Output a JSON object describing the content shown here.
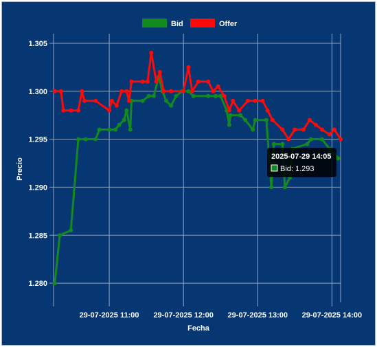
{
  "colors": {
    "background": "#063773",
    "grid": "#8ea6c6",
    "bid": "#138a1d",
    "offer": "#ff0a0a",
    "tooltip_bg": "#000000",
    "text": "#ffffff"
  },
  "chart_data": {
    "type": "line",
    "title": "",
    "xlabel": "Fecha",
    "ylabel": "Precio",
    "legend_position": "top",
    "grid": true,
    "x_range": [
      "2025-07-29 10:15",
      "2025-07-29 14:07"
    ],
    "ylim": [
      1.278,
      1.306
    ],
    "y_ticks": [
      "1.280",
      "1.285",
      "1.290",
      "1.295",
      "1.300",
      "1.305"
    ],
    "x_ticks": [
      {
        "t": "2025-07-29 11:00",
        "label": "29-07-2025 11:00"
      },
      {
        "t": "2025-07-29 12:00",
        "label": "29-07-2025 12:00"
      },
      {
        "t": "2025-07-29 13:00",
        "label": "29-07-2025 13:00"
      },
      {
        "t": "2025-07-29 14:00",
        "label": "29-07-2025 14:00"
      }
    ],
    "series": [
      {
        "name": "Bid",
        "color": "#138a1d",
        "points": [
          [
            "2025-07-29 10:16",
            1.28
          ],
          [
            "2025-07-29 10:20",
            1.285
          ],
          [
            "2025-07-29 10:29",
            1.2855
          ],
          [
            "2025-07-29 10:35",
            1.295
          ],
          [
            "2025-07-29 10:41",
            1.295
          ],
          [
            "2025-07-29 10:49",
            1.295
          ],
          [
            "2025-07-29 10:52",
            1.296
          ],
          [
            "2025-07-29 11:00",
            1.296
          ],
          [
            "2025-07-29 11:05",
            1.296
          ],
          [
            "2025-07-29 11:08",
            1.2965
          ],
          [
            "2025-07-29 11:12",
            1.297
          ],
          [
            "2025-07-29 11:14",
            1.298
          ],
          [
            "2025-07-29 11:17",
            1.296
          ],
          [
            "2025-07-29 11:18",
            1.299
          ],
          [
            "2025-07-29 11:27",
            1.299
          ],
          [
            "2025-07-29 11:32",
            1.2995
          ],
          [
            "2025-07-29 11:36",
            1.2995
          ],
          [
            "2025-07-29 11:40",
            1.3015
          ],
          [
            "2025-07-29 11:43",
            1.3
          ],
          [
            "2025-07-29 11:46",
            1.299
          ],
          [
            "2025-07-29 11:50",
            1.2985
          ],
          [
            "2025-07-29 11:54",
            1.2995
          ],
          [
            "2025-07-29 11:59",
            1.3
          ],
          [
            "2025-07-29 12:04",
            1.3
          ],
          [
            "2025-07-29 12:08",
            1.2995
          ],
          [
            "2025-07-29 12:20",
            1.2995
          ],
          [
            "2025-07-29 12:26",
            1.2995
          ],
          [
            "2025-07-29 12:30",
            1.2995
          ],
          [
            "2025-07-29 12:35",
            1.298
          ],
          [
            "2025-07-29 12:37",
            1.2965
          ],
          [
            "2025-07-29 12:38",
            1.2975
          ],
          [
            "2025-07-29 12:46",
            1.2975
          ],
          [
            "2025-07-29 12:50",
            1.297
          ],
          [
            "2025-07-29 12:56",
            1.296
          ],
          [
            "2025-07-29 12:58",
            1.297
          ],
          [
            "2025-07-29 13:07",
            1.297
          ],
          [
            "2025-07-29 13:11",
            1.29
          ],
          [
            "2025-07-29 13:13",
            1.2945
          ],
          [
            "2025-07-29 13:20",
            1.2945
          ],
          [
            "2025-07-29 13:22",
            1.29
          ],
          [
            "2025-07-29 13:26",
            1.291
          ],
          [
            "2025-07-29 13:28",
            1.294
          ],
          [
            "2025-07-29 13:40",
            1.2945
          ],
          [
            "2025-07-29 13:43",
            1.295
          ],
          [
            "2025-07-29 13:52",
            1.295
          ],
          [
            "2025-07-29 13:58",
            1.294
          ],
          [
            "2025-07-29 14:02",
            1.2935
          ],
          [
            "2025-07-29 14:05",
            1.293
          ]
        ]
      },
      {
        "name": "Offer",
        "color": "#ff0a0a",
        "points": [
          [
            "2025-07-29 10:16",
            1.3
          ],
          [
            "2025-07-29 10:21",
            1.3
          ],
          [
            "2025-07-29 10:23",
            1.298
          ],
          [
            "2025-07-29 10:29",
            1.298
          ],
          [
            "2025-07-29 10:35",
            1.298
          ],
          [
            "2025-07-29 10:38",
            1.3
          ],
          [
            "2025-07-29 10:40",
            1.299
          ],
          [
            "2025-07-29 10:49",
            1.299
          ],
          [
            "2025-07-29 11:00",
            1.298
          ],
          [
            "2025-07-29 11:02",
            1.299
          ],
          [
            "2025-07-29 11:06",
            1.2985
          ],
          [
            "2025-07-29 11:10",
            1.3
          ],
          [
            "2025-07-29 11:14",
            1.3
          ],
          [
            "2025-07-29 11:16",
            1.299
          ],
          [
            "2025-07-29 11:18",
            1.301
          ],
          [
            "2025-07-29 11:27",
            1.301
          ],
          [
            "2025-07-29 11:31",
            1.301
          ],
          [
            "2025-07-29 11:34",
            1.304
          ],
          [
            "2025-07-29 11:38",
            1.301
          ],
          [
            "2025-07-29 11:41",
            1.302
          ],
          [
            "2025-07-29 11:44",
            1.3
          ],
          [
            "2025-07-29 11:50",
            1.3
          ],
          [
            "2025-07-29 12:00",
            1.3
          ],
          [
            "2025-07-29 12:04",
            1.3025
          ],
          [
            "2025-07-29 12:07",
            1.3
          ],
          [
            "2025-07-29 12:12",
            1.301
          ],
          [
            "2025-07-29 12:20",
            1.301
          ],
          [
            "2025-07-29 12:24",
            1.3
          ],
          [
            "2025-07-29 12:28",
            1.3005
          ],
          [
            "2025-07-29 12:33",
            1.2995
          ],
          [
            "2025-07-29 12:37",
            1.298
          ],
          [
            "2025-07-29 12:40",
            1.299
          ],
          [
            "2025-07-29 12:45",
            1.298
          ],
          [
            "2025-07-29 12:52",
            1.299
          ],
          [
            "2025-07-29 12:58",
            1.299
          ],
          [
            "2025-07-29 13:04",
            1.299
          ],
          [
            "2025-07-29 13:08",
            1.298
          ],
          [
            "2025-07-29 13:12",
            1.297
          ],
          [
            "2025-07-29 13:20",
            1.296
          ],
          [
            "2025-07-29 13:25",
            1.295
          ],
          [
            "2025-07-29 13:30",
            1.296
          ],
          [
            "2025-07-29 13:37",
            1.296
          ],
          [
            "2025-07-29 13:42",
            1.297
          ],
          [
            "2025-07-29 13:47",
            1.2965
          ],
          [
            "2025-07-29 13:52",
            1.296
          ],
          [
            "2025-07-29 13:58",
            1.2955
          ],
          [
            "2025-07-29 14:02",
            1.296
          ],
          [
            "2025-07-29 14:07",
            1.295
          ]
        ]
      }
    ],
    "tooltip": {
      "title": "2025-07-29 14:05",
      "series": "Bid",
      "text": "Bid: 1.293"
    }
  }
}
